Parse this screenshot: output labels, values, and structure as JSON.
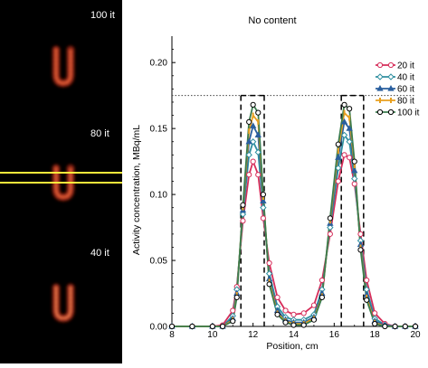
{
  "images": {
    "labels": [
      "100 it",
      "80 it",
      "40 it"
    ],
    "band_color": "#ffeb3b"
  },
  "chart_data": {
    "type": "line",
    "title": "No content",
    "xlabel": "Position, cm",
    "ylabel": "Activity concentration, MBq/mL",
    "xlim": [
      8,
      20
    ],
    "ylim": [
      0,
      0.22
    ],
    "xticks": [
      "8",
      "10",
      "12",
      "14",
      "16",
      "18",
      "20"
    ],
    "yticks": [
      "0.00",
      "0.05",
      "0.10",
      "0.15",
      "0.20"
    ],
    "reference_level": 0.175,
    "roi_bounds_cm": [
      11.4,
      12.55,
      16.35,
      17.45
    ],
    "legend_position": "right",
    "series": [
      {
        "name": "20 it",
        "color": "#d62d5a",
        "marker": "circle",
        "points": [
          [
            8,
            0
          ],
          [
            9,
            0
          ],
          [
            10,
            0
          ],
          [
            10.5,
            0.001
          ],
          [
            11,
            0.012
          ],
          [
            11.2,
            0.03
          ],
          [
            11.5,
            0.08
          ],
          [
            11.8,
            0.115
          ],
          [
            12,
            0.125
          ],
          [
            12.25,
            0.115
          ],
          [
            12.5,
            0.082
          ],
          [
            12.8,
            0.048
          ],
          [
            13.2,
            0.022
          ],
          [
            13.6,
            0.012
          ],
          [
            14,
            0.009
          ],
          [
            14.5,
            0.01
          ],
          [
            15,
            0.016
          ],
          [
            15.4,
            0.035
          ],
          [
            15.8,
            0.07
          ],
          [
            16.2,
            0.11
          ],
          [
            16.5,
            0.13
          ],
          [
            16.75,
            0.128
          ],
          [
            17,
            0.108
          ],
          [
            17.3,
            0.07
          ],
          [
            17.6,
            0.035
          ],
          [
            18,
            0.01
          ],
          [
            18.5,
            0.002
          ],
          [
            19,
            0
          ],
          [
            19.5,
            0
          ],
          [
            20,
            0
          ]
        ]
      },
      {
        "name": "40 it",
        "color": "#2f8fa0",
        "marker": "diamond",
        "points": [
          [
            8,
            0
          ],
          [
            9,
            0
          ],
          [
            10,
            0
          ],
          [
            10.5,
            0
          ],
          [
            11,
            0.008
          ],
          [
            11.2,
            0.028
          ],
          [
            11.5,
            0.085
          ],
          [
            11.8,
            0.13
          ],
          [
            12,
            0.14
          ],
          [
            12.25,
            0.132
          ],
          [
            12.5,
            0.09
          ],
          [
            12.8,
            0.04
          ],
          [
            13.2,
            0.015
          ],
          [
            13.6,
            0.007
          ],
          [
            14,
            0.005
          ],
          [
            14.5,
            0.005
          ],
          [
            15,
            0.009
          ],
          [
            15.4,
            0.028
          ],
          [
            15.8,
            0.075
          ],
          [
            16.2,
            0.12
          ],
          [
            16.5,
            0.145
          ],
          [
            16.75,
            0.14
          ],
          [
            17,
            0.112
          ],
          [
            17.3,
            0.065
          ],
          [
            17.6,
            0.028
          ],
          [
            18,
            0.006
          ],
          [
            18.5,
            0.001
          ],
          [
            19,
            0
          ],
          [
            19.5,
            0
          ],
          [
            20,
            0
          ]
        ]
      },
      {
        "name": "60 it",
        "color": "#2a5f9e",
        "marker": "triangle",
        "points": [
          [
            8,
            0
          ],
          [
            9,
            0
          ],
          [
            10,
            0
          ],
          [
            10.5,
            0
          ],
          [
            11,
            0.006
          ],
          [
            11.2,
            0.025
          ],
          [
            11.5,
            0.088
          ],
          [
            11.8,
            0.14
          ],
          [
            12,
            0.152
          ],
          [
            12.25,
            0.145
          ],
          [
            12.5,
            0.095
          ],
          [
            12.8,
            0.036
          ],
          [
            13.2,
            0.012
          ],
          [
            13.6,
            0.005
          ],
          [
            14,
            0.003
          ],
          [
            14.5,
            0.003
          ],
          [
            15,
            0.007
          ],
          [
            15.4,
            0.025
          ],
          [
            15.8,
            0.078
          ],
          [
            16.2,
            0.128
          ],
          [
            16.5,
            0.155
          ],
          [
            16.75,
            0.15
          ],
          [
            17,
            0.118
          ],
          [
            17.3,
            0.062
          ],
          [
            17.6,
            0.024
          ],
          [
            18,
            0.004
          ],
          [
            18.5,
            0.001
          ],
          [
            19,
            0
          ],
          [
            19.5,
            0
          ],
          [
            20,
            0
          ]
        ]
      },
      {
        "name": "80 it",
        "color": "#e8a020",
        "marker": "bar",
        "points": [
          [
            8,
            0
          ],
          [
            9,
            0
          ],
          [
            10,
            0
          ],
          [
            10.5,
            0
          ],
          [
            11,
            0.005
          ],
          [
            11.2,
            0.024
          ],
          [
            11.5,
            0.09
          ],
          [
            11.8,
            0.148
          ],
          [
            12,
            0.16
          ],
          [
            12.25,
            0.155
          ],
          [
            12.5,
            0.098
          ],
          [
            12.8,
            0.034
          ],
          [
            13.2,
            0.01
          ],
          [
            13.6,
            0.004
          ],
          [
            14,
            0.002
          ],
          [
            14.5,
            0.002
          ],
          [
            15,
            0.006
          ],
          [
            15.4,
            0.023
          ],
          [
            15.8,
            0.08
          ],
          [
            16.2,
            0.133
          ],
          [
            16.5,
            0.162
          ],
          [
            16.75,
            0.158
          ],
          [
            17,
            0.122
          ],
          [
            17.3,
            0.06
          ],
          [
            17.6,
            0.022
          ],
          [
            18,
            0.003
          ],
          [
            18.5,
            0
          ],
          [
            19,
            0
          ],
          [
            19.5,
            0
          ],
          [
            20,
            0
          ]
        ]
      },
      {
        "name": "100 it",
        "color": "#3b7d4f",
        "marker": "circle-open",
        "points": [
          [
            8,
            0
          ],
          [
            9,
            0
          ],
          [
            10,
            0
          ],
          [
            10.5,
            0
          ],
          [
            11,
            0.004
          ],
          [
            11.2,
            0.022
          ],
          [
            11.5,
            0.092
          ],
          [
            11.8,
            0.155
          ],
          [
            12,
            0.168
          ],
          [
            12.25,
            0.162
          ],
          [
            12.5,
            0.1
          ],
          [
            12.8,
            0.032
          ],
          [
            13.2,
            0.009
          ],
          [
            13.6,
            0.003
          ],
          [
            14,
            0.001
          ],
          [
            14.5,
            0.001
          ],
          [
            15,
            0.005
          ],
          [
            15.4,
            0.022
          ],
          [
            15.8,
            0.082
          ],
          [
            16.2,
            0.138
          ],
          [
            16.5,
            0.168
          ],
          [
            16.75,
            0.165
          ],
          [
            17,
            0.125
          ],
          [
            17.3,
            0.058
          ],
          [
            17.6,
            0.02
          ],
          [
            18,
            0.002
          ],
          [
            18.5,
            0
          ],
          [
            19,
            0
          ],
          [
            19.5,
            0
          ],
          [
            20,
            0
          ]
        ]
      }
    ]
  }
}
